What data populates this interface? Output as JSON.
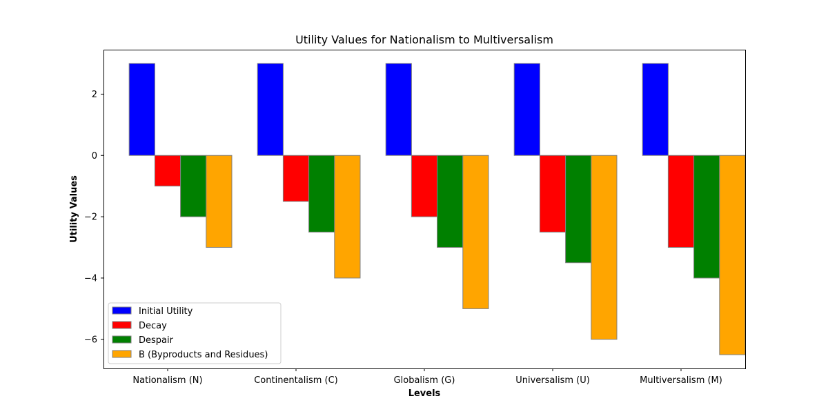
{
  "chart_data": {
    "type": "bar",
    "title": "Utility Values for Nationalism to Multiversalism",
    "xlabel": "Levels",
    "ylabel": "Utility Values",
    "categories": [
      "Nationalism (N)",
      "Continentalism (C)",
      "Globalism (G)",
      "Universalism (U)",
      "Multiversalism (M)"
    ],
    "series": [
      {
        "name": "Initial Utility",
        "color": "#0000ff",
        "values": [
          3,
          3,
          3,
          3,
          3
        ]
      },
      {
        "name": "Decay",
        "color": "#ff0000",
        "values": [
          -1,
          -1.5,
          -2,
          -2.5,
          -3
        ]
      },
      {
        "name": "Despair",
        "color": "#008000",
        "values": [
          -2,
          -2.5,
          -3,
          -3.5,
          -4
        ]
      },
      {
        "name": "B (Byproducts and Residues)",
        "color": "#ffa500",
        "values": [
          -3,
          -4,
          -5,
          -6,
          -6.5
        ]
      }
    ],
    "ylim": [
      -6.95,
      3.45
    ],
    "yticks": [
      2,
      0,
      -2,
      -4,
      -6
    ],
    "ytick_labels": [
      "2",
      "0",
      "−2",
      "−4",
      "−6"
    ],
    "grid": false,
    "legend_position": "lower left",
    "bar_edge_color": "#808080"
  }
}
